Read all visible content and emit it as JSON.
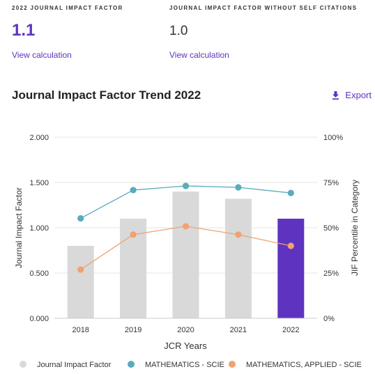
{
  "metrics": {
    "jif": {
      "label": "2022 JOURNAL IMPACT FACTOR",
      "value": "1.1",
      "link": "View calculation"
    },
    "jif_no_self": {
      "label": "JOURNAL IMPACT FACTOR WITHOUT SELF CITATIONS",
      "value": "1.0",
      "link": "View calculation"
    }
  },
  "trend": {
    "title": "Journal Impact Factor Trend 2022",
    "export_label": "Export"
  },
  "colors": {
    "accent": "#5e33bf",
    "bar": "#d9d9d9",
    "bar_highlight": "#5e33bf",
    "math": "#5aabbc",
    "applied": "#f0a26f"
  },
  "chart_data": {
    "type": "bar",
    "categories": [
      "2018",
      "2019",
      "2020",
      "2021",
      "2022"
    ],
    "xlabel": "JCR Years",
    "ylabel": "Journal Impact Factor",
    "y2label": "JIF Percentile in Category",
    "ylim": [
      0,
      2
    ],
    "y2lim": [
      0,
      100
    ],
    "yticks": [
      "0.000",
      "0.500",
      "1.000",
      "1.500",
      "2.000"
    ],
    "y2ticks": [
      "0%",
      "25%",
      "50%",
      "75%",
      "100%"
    ],
    "legend_position": "bottom",
    "series": [
      {
        "name": "Journal Impact Factor",
        "type": "bar",
        "axis": "left",
        "values": [
          0.8,
          1.1,
          1.4,
          1.32,
          1.1
        ],
        "highlight_index": 4
      },
      {
        "name": "MATHEMATICS - SCIE",
        "type": "line",
        "axis": "right",
        "values": [
          55.2,
          70.8,
          73.1,
          72.3,
          69.2
        ]
      },
      {
        "name": "MATHEMATICS, APPLIED - SCIE",
        "type": "line",
        "axis": "right",
        "values": [
          26.9,
          46.2,
          50.8,
          46.2,
          40.0
        ]
      }
    ]
  }
}
